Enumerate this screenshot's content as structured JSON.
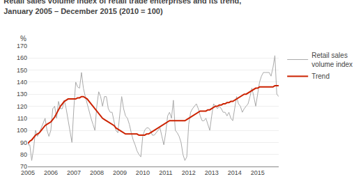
{
  "chart_data": {
    "type": "line",
    "title": "Retail sales volume index of retail trade enterprises and its trend,",
    "subtitle": "January 2005 – December 2015 (2010 = 100)",
    "y_label": "%",
    "categories": [
      "2005",
      null,
      null,
      null,
      null,
      null,
      null,
      null,
      null,
      null,
      null,
      null,
      "2006",
      null,
      null,
      null,
      null,
      null,
      null,
      null,
      null,
      null,
      null,
      null,
      "2007",
      null,
      null,
      null,
      null,
      null,
      null,
      null,
      null,
      null,
      null,
      null,
      "2008",
      null,
      null,
      null,
      null,
      null,
      null,
      null,
      null,
      null,
      null,
      null,
      "2009",
      null,
      null,
      null,
      null,
      null,
      null,
      null,
      null,
      null,
      null,
      null,
      "2010",
      null,
      null,
      null,
      null,
      null,
      null,
      null,
      null,
      null,
      null,
      null,
      "2011",
      null,
      null,
      null,
      null,
      null,
      null,
      null,
      null,
      null,
      null,
      null,
      "2012",
      null,
      null,
      null,
      null,
      null,
      null,
      null,
      null,
      null,
      null,
      null,
      "2013",
      null,
      null,
      null,
      null,
      null,
      null,
      null,
      null,
      null,
      null,
      null,
      "2014",
      null,
      null,
      null,
      null,
      null,
      null,
      null,
      null,
      null,
      null,
      null,
      "2015",
      null,
      null,
      null,
      null,
      null,
      null,
      null,
      null,
      null,
      null,
      null
    ],
    "series": [
      {
        "name": "Retail sales\nvolume index",
        "color": "#aaaaaa",
        "values": [
          88,
          88,
          75,
          85,
          100,
          95,
          98,
          102,
          105,
          110,
          100,
          95,
          100,
          118,
          120,
          110,
          124,
          118,
          118,
          125,
          118,
          108,
          100,
          90,
          118,
          140,
          136,
          135,
          148,
          135,
          128,
          122,
          115,
          110,
          105,
          100,
          120,
          132,
          128,
          120,
          128,
          128,
          118,
          115,
          115,
          108,
          100,
          98,
          115,
          128,
          118,
          112,
          110,
          105,
          98,
          92,
          88,
          83,
          80,
          78,
          95,
          100,
          102,
          102,
          100,
          96,
          96,
          98,
          100,
          102,
          95,
          88,
          98,
          112,
          115,
          110,
          125,
          100,
          98,
          95,
          90,
          80,
          75,
          78,
          105,
          115,
          118,
          120,
          122,
          118,
          112,
          108,
          108,
          110,
          105,
          100,
          112,
          122,
          120,
          118,
          120,
          118,
          115,
          115,
          112,
          115,
          110,
          108,
          118,
          128,
          122,
          120,
          115,
          118,
          120,
          122,
          128,
          135,
          128,
          120,
          130,
          140,
          145,
          148,
          148,
          148,
          148,
          145,
          152,
          162,
          130,
          128
        ]
      },
      {
        "name": "Trend",
        "color": "#cc2200",
        "values": [
          89,
          91,
          92,
          94,
          96,
          97,
          98,
          100,
          102,
          104,
          105,
          106,
          107,
          109,
          111,
          114,
          117,
          120,
          122,
          124,
          125,
          126,
          126,
          126,
          126,
          126,
          127,
          127,
          128,
          128,
          127,
          126,
          124,
          122,
          120,
          118,
          116,
          114,
          112,
          110,
          109,
          108,
          107,
          106,
          105,
          104,
          102,
          101,
          100,
          99,
          98,
          97,
          97,
          97,
          97,
          97,
          97,
          97,
          96,
          96,
          96,
          96,
          97,
          97,
          98,
          99,
          100,
          101,
          102,
          103,
          104,
          105,
          106,
          107,
          108,
          108,
          108,
          108,
          108,
          108,
          108,
          108,
          108,
          109,
          110,
          111,
          112,
          113,
          114,
          115,
          116,
          116,
          116,
          116,
          117,
          117,
          118,
          119,
          120,
          120,
          121,
          121,
          122,
          122,
          123,
          123,
          124,
          124,
          125,
          126,
          127,
          128,
          129,
          130,
          130,
          131,
          132,
          133,
          134,
          135,
          135,
          136,
          136,
          136,
          136,
          136,
          136,
          136,
          136,
          137,
          137,
          137
        ]
      }
    ],
    "ylim": [
      70,
      170
    ],
    "yticks": [
      70,
      80,
      90,
      100,
      110,
      120,
      130,
      140,
      150,
      160,
      170
    ],
    "grid": "y",
    "legend": "upper right"
  }
}
